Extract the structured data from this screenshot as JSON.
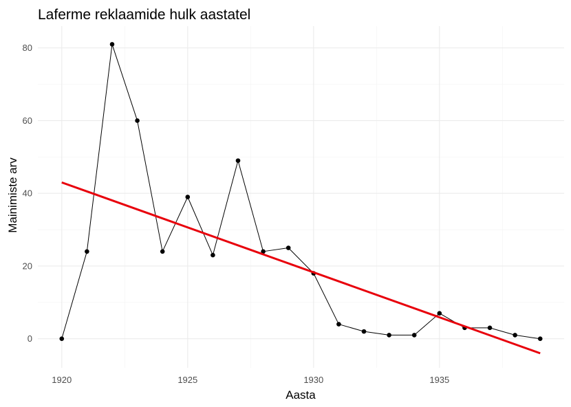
{
  "chart_data": {
    "type": "line",
    "title": "Laferme reklaamide hulk aastatel",
    "xlabel": "Aasta",
    "ylabel": "Mainimiste arv",
    "xlim": [
      1919.05,
      1939.95
    ],
    "ylim": [
      -8,
      86
    ],
    "x_ticks": [
      1920,
      1925,
      1930,
      1935
    ],
    "y_ticks": [
      0,
      20,
      40,
      60,
      80
    ],
    "grid": true,
    "legend": "none",
    "series": [
      {
        "x": [
          1920,
          1921,
          1922,
          1923,
          1924,
          1925,
          1926,
          1927,
          1928,
          1929,
          1930,
          1931,
          1932,
          1933,
          1934,
          1935,
          1936,
          1937,
          1938,
          1939
        ],
        "y": [
          0,
          24,
          81,
          60,
          24,
          39,
          23,
          49,
          24,
          25,
          18,
          4,
          2,
          1,
          1,
          7,
          3,
          3,
          1,
          0
        ],
        "color": "#000000",
        "markers": true
      },
      {
        "x": [
          1920,
          1939
        ],
        "y": [
          43,
          -4
        ],
        "color": "#e8000b",
        "markers": false,
        "trend": true
      }
    ]
  }
}
